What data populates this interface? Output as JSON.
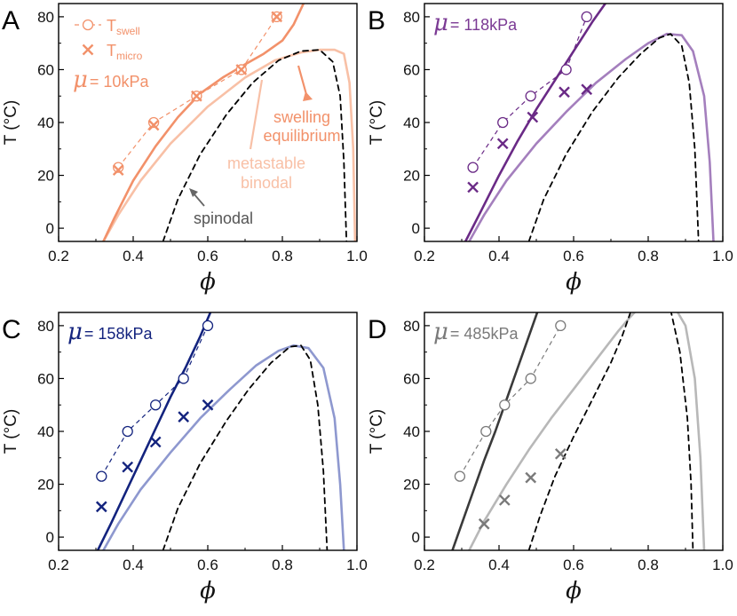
{
  "panel_letters": [
    "A",
    "B",
    "C",
    "D"
  ],
  "chart_data": [
    {
      "type": "line",
      "panel": "A",
      "xlabel": "ϕ",
      "ylabel": "T (°C)",
      "xlim": [
        0.2,
        1.0
      ],
      "ylim": [
        -5,
        85
      ],
      "xticks": [
        "0.2",
        "0.4",
        "0.6",
        "0.8",
        "1.0"
      ],
      "yticks": [
        "0",
        "20",
        "40",
        "60",
        "80"
      ],
      "mu_symbol": "μ",
      "mu_value": "= 10kPa",
      "legend": {
        "placement": "top-left",
        "swell_label": "T",
        "swell_sub": "swell",
        "micro_label": "T",
        "micro_sub": "micro"
      },
      "annotations": {
        "swelling": [
          "swelling",
          "equilibrium"
        ],
        "metastable": [
          "metastable",
          "binodal"
        ],
        "spinodal": "spinodal"
      },
      "colors": {
        "swelling": "#f2916a",
        "binodal": "#f8c0a6",
        "markers": "#f2916a",
        "spinodal": "#000000",
        "mu": "#f2916a"
      },
      "swelling_curve": {
        "x": [
          0.32,
          0.35,
          0.4,
          0.46,
          0.52,
          0.58,
          0.64,
          0.7,
          0.75,
          0.8,
          0.83,
          0.86
        ],
        "y": [
          -5,
          4,
          18,
          31,
          42,
          51,
          57,
          62,
          66,
          71,
          77,
          86
        ]
      },
      "binodal": {
        "x": [
          0.32,
          0.36,
          0.42,
          0.5,
          0.6,
          0.7,
          0.78,
          0.85,
          0.9,
          0.94,
          0.965,
          0.98,
          0.99,
          0.995
        ],
        "y": [
          -5,
          5,
          18,
          32,
          46,
          57,
          63.5,
          66.5,
          67.5,
          67.5,
          66,
          55,
          30,
          -5
        ]
      },
      "spinodal": {
        "x": [
          0.48,
          0.52,
          0.58,
          0.65,
          0.72,
          0.79,
          0.85,
          0.9,
          0.935,
          0.955,
          0.965,
          0.972
        ],
        "y": [
          -5,
          11,
          28,
          43,
          55,
          63.5,
          67,
          67.5,
          63,
          50,
          25,
          -5
        ]
      },
      "t_swell": {
        "x": [
          0.36,
          0.455,
          0.57,
          0.69,
          0.785
        ],
        "y": [
          23,
          40,
          50,
          60,
          80
        ]
      },
      "t_micro": {
        "x": [
          0.36,
          0.455,
          0.57,
          0.69,
          0.785
        ],
        "y": [
          22,
          39,
          50,
          60,
          80
        ]
      }
    },
    {
      "type": "line",
      "panel": "B",
      "xlabel": "ϕ",
      "ylabel": "T (°C)",
      "xlim": [
        0.2,
        1.0
      ],
      "ylim": [
        -5,
        85
      ],
      "xticks": [
        "0.2",
        "0.4",
        "0.6",
        "0.8",
        "1.0"
      ],
      "yticks": [
        "0",
        "20",
        "40",
        "60",
        "80"
      ],
      "mu_symbol": "μ",
      "mu_value": "= 118kPa",
      "colors": {
        "swelling": "#6a2a86",
        "binodal": "#a47fbd",
        "markers": "#6a2a86",
        "spinodal": "#000000",
        "mu": "#7b3a94"
      },
      "swelling_curve": {
        "x": [
          0.31,
          0.35,
          0.4,
          0.45,
          0.5,
          0.55,
          0.6,
          0.65,
          0.69
        ],
        "y": [
          -5,
          6,
          20,
          33,
          45,
          56,
          67,
          78,
          86
        ]
      },
      "binodal": {
        "x": [
          0.32,
          0.36,
          0.42,
          0.5,
          0.58,
          0.66,
          0.74,
          0.8,
          0.85,
          0.89,
          0.92,
          0.95,
          0.965,
          0.975
        ],
        "y": [
          -5,
          5,
          18,
          32,
          44,
          55,
          64,
          70,
          73.5,
          73,
          67,
          50,
          25,
          -5
        ]
      },
      "spinodal": {
        "x": [
          0.48,
          0.52,
          0.58,
          0.65,
          0.72,
          0.78,
          0.83,
          0.86,
          0.89,
          0.91,
          0.925,
          0.935
        ],
        "y": [
          -5,
          11,
          28,
          44,
          57,
          66,
          72,
          73.5,
          69,
          55,
          30,
          -5
        ]
      },
      "t_swell": {
        "x": [
          0.33,
          0.41,
          0.485,
          0.58,
          0.635
        ],
        "y": [
          23,
          40,
          50,
          60,
          80
        ]
      },
      "t_micro": {
        "x": [
          0.33,
          0.41,
          0.49,
          0.575,
          0.635
        ],
        "y": [
          15.5,
          32,
          42,
          51.5,
          52.5
        ]
      }
    },
    {
      "type": "line",
      "panel": "C",
      "xlabel": "ϕ",
      "ylabel": "T (°C)",
      "xlim": [
        0.2,
        1.0
      ],
      "ylim": [
        -5,
        85
      ],
      "xticks": [
        "0.2",
        "0.4",
        "0.6",
        "0.8",
        "1.0"
      ],
      "yticks": [
        "0",
        "20",
        "40",
        "60",
        "80"
      ],
      "mu_symbol": "μ",
      "mu_value": "= 158kPa",
      "colors": {
        "swelling": "#13237e",
        "binodal": "#8e98cf",
        "markers": "#13237e",
        "spinodal": "#000000",
        "mu": "#13237e"
      },
      "swelling_curve": {
        "x": [
          0.305,
          0.34,
          0.38,
          0.42,
          0.46,
          0.5,
          0.54,
          0.58,
          0.61
        ],
        "y": [
          -5,
          5,
          17,
          29,
          41,
          53,
          64,
          76,
          86
        ]
      },
      "binodal": {
        "x": [
          0.32,
          0.36,
          0.42,
          0.5,
          0.58,
          0.66,
          0.73,
          0.79,
          0.83,
          0.87,
          0.91,
          0.94,
          0.955,
          0.965
        ],
        "y": [
          -5,
          5,
          18,
          32,
          45,
          56,
          65,
          70.5,
          72.5,
          71.5,
          64,
          45,
          20,
          -5
        ]
      },
      "spinodal": {
        "x": [
          0.48,
          0.52,
          0.58,
          0.65,
          0.71,
          0.77,
          0.82,
          0.85,
          0.875,
          0.895,
          0.91,
          0.92
        ],
        "y": [
          -5,
          11,
          28,
          44,
          56,
          66,
          72,
          72.5,
          67,
          50,
          25,
          -5
        ]
      },
      "t_swell": {
        "x": [
          0.315,
          0.385,
          0.46,
          0.535,
          0.6
        ],
        "y": [
          23,
          40,
          50,
          60,
          80
        ]
      },
      "t_micro": {
        "x": [
          0.315,
          0.385,
          0.46,
          0.535,
          0.6
        ],
        "y": [
          11.5,
          26.5,
          36,
          45.5,
          50
        ]
      }
    },
    {
      "type": "line",
      "panel": "D",
      "xlabel": "ϕ",
      "ylabel": "T (°C)",
      "xlim": [
        0.2,
        1.0
      ],
      "ylim": [
        -5,
        85
      ],
      "xticks": [
        "0.2",
        "0.4",
        "0.6",
        "0.8",
        "1.0"
      ],
      "yticks": [
        "0",
        "20",
        "40",
        "60",
        "80"
      ],
      "mu_symbol": "μ",
      "mu_value": "= 485kPa",
      "colors": {
        "swelling": "#3a3a3a",
        "binodal": "#b8b8b8",
        "markers": "#7a7a7a",
        "spinodal": "#000000",
        "mu": "#7a7a7a"
      },
      "swelling_curve": {
        "x": [
          0.275,
          0.3,
          0.33,
          0.36,
          0.39,
          0.42,
          0.45,
          0.48,
          0.505
        ],
        "y": [
          -5,
          5,
          17,
          29,
          40,
          52,
          64,
          76,
          86
        ]
      },
      "binodal": {
        "x": [
          0.32,
          0.36,
          0.42,
          0.48,
          0.54,
          0.6,
          0.66,
          0.72,
          0.75,
          0.77
        ],
        "y": [
          -5,
          6,
          20,
          33,
          45,
          56,
          67,
          78,
          83,
          86
        ]
      },
      "binodal_right": {
        "x": [
          0.875,
          0.9,
          0.925,
          0.94,
          0.95
        ],
        "y": [
          86,
          80,
          60,
          30,
          -5
        ]
      },
      "spinodal": {
        "x": [
          0.48,
          0.51,
          0.55,
          0.6,
          0.65,
          0.7,
          0.73,
          0.755
        ],
        "y": [
          -5,
          8,
          23,
          38,
          52,
          66,
          76,
          86
        ]
      },
      "spinodal_right": {
        "x": [
          0.86,
          0.885,
          0.905,
          0.915,
          0.92
        ],
        "y": [
          86,
          70,
          45,
          20,
          -5
        ]
      },
      "t_swell": {
        "x": [
          0.295,
          0.365,
          0.415,
          0.485,
          0.565
        ],
        "y": [
          23,
          40,
          50,
          60,
          80
        ]
      },
      "t_micro": {
        "x": [
          0.36,
          0.415,
          0.485,
          0.565
        ],
        "y": [
          5,
          14,
          22.5,
          31.5
        ]
      }
    }
  ]
}
